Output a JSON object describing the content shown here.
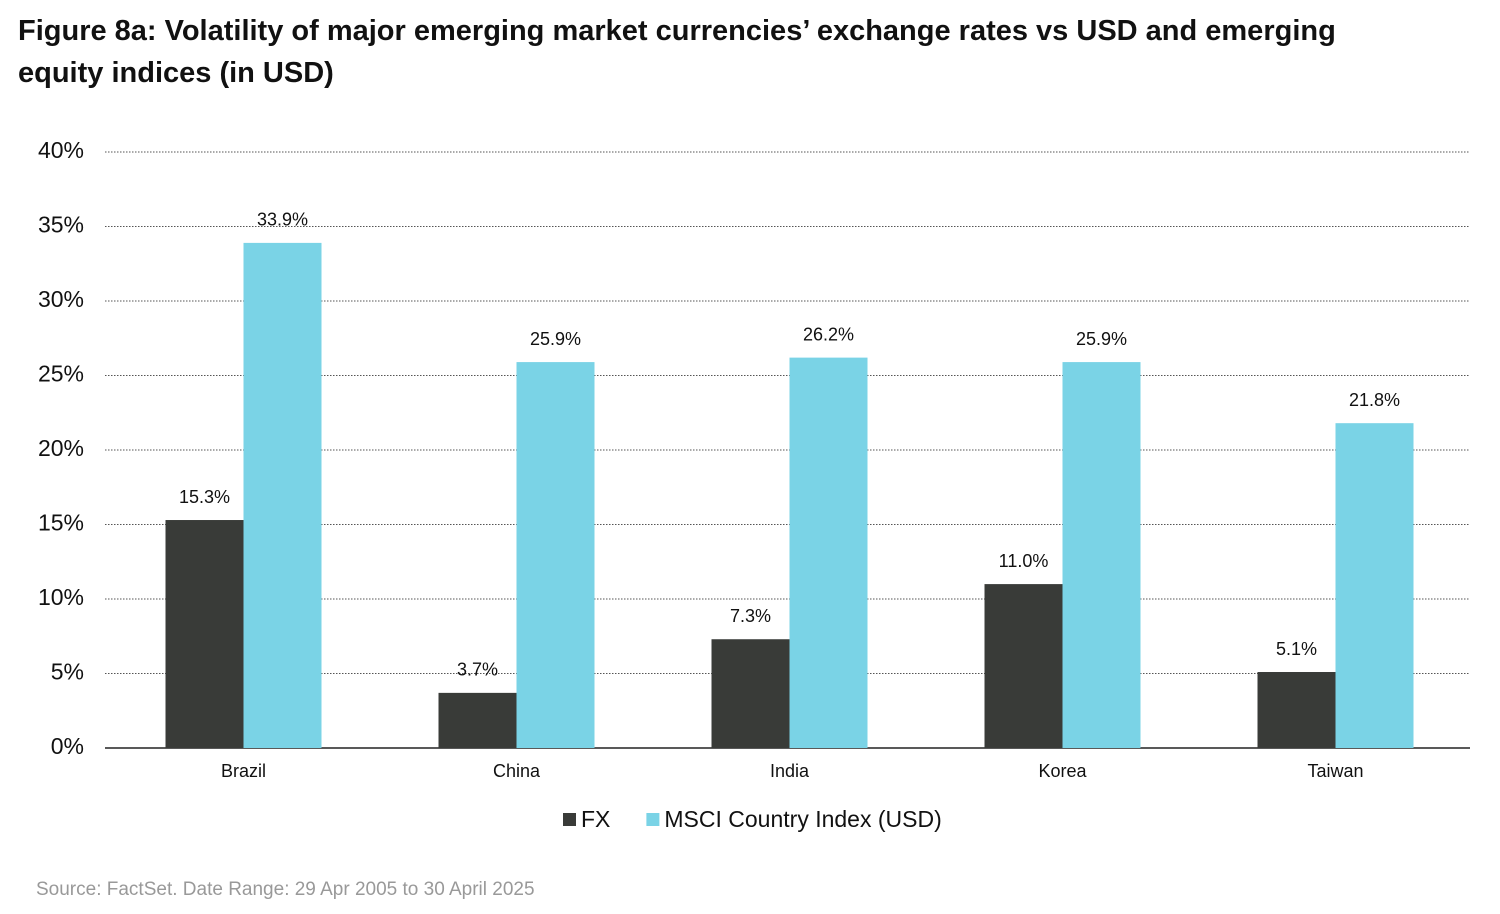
{
  "chart_data": {
    "type": "bar",
    "title": "Figure 8a: Volatility of major emerging market currencies’ exchange rates vs USD and emerging equity indices (in USD)",
    "categories": [
      "Brazil",
      "China",
      "India",
      "Korea",
      "Taiwan"
    ],
    "series": [
      {
        "name": "FX",
        "color": "#393b38",
        "values": [
          15.3,
          3.7,
          7.3,
          11.0,
          5.1
        ],
        "value_labels": [
          "15.3%",
          "3.7%",
          "7.3%",
          "11.0%",
          "5.1%"
        ]
      },
      {
        "name": "MSCI Country Index (USD)",
        "color": "#7ad3e6",
        "values": [
          33.9,
          25.9,
          26.2,
          25.9,
          21.8
        ],
        "value_labels": [
          "33.9%",
          "25.9%",
          "26.2%",
          "25.9%",
          "21.8%"
        ]
      }
    ],
    "ylim": [
      0,
      40
    ],
    "yticks": [
      {
        "value": 0,
        "label": "0%"
      },
      {
        "value": 5,
        "label": "5%"
      },
      {
        "value": 10,
        "label": "10%"
      },
      {
        "value": 15,
        "label": "15%"
      },
      {
        "value": 20,
        "label": "20%"
      },
      {
        "value": 25,
        "label": "25%"
      },
      {
        "value": 30,
        "label": "30%"
      },
      {
        "value": 35,
        "label": "35%"
      },
      {
        "value": 40,
        "label": "40%"
      }
    ],
    "grid": true,
    "legend": "bottom",
    "source": "Source: FactSet. Date Range: 29 Apr 2005 to 30 April 2025"
  }
}
